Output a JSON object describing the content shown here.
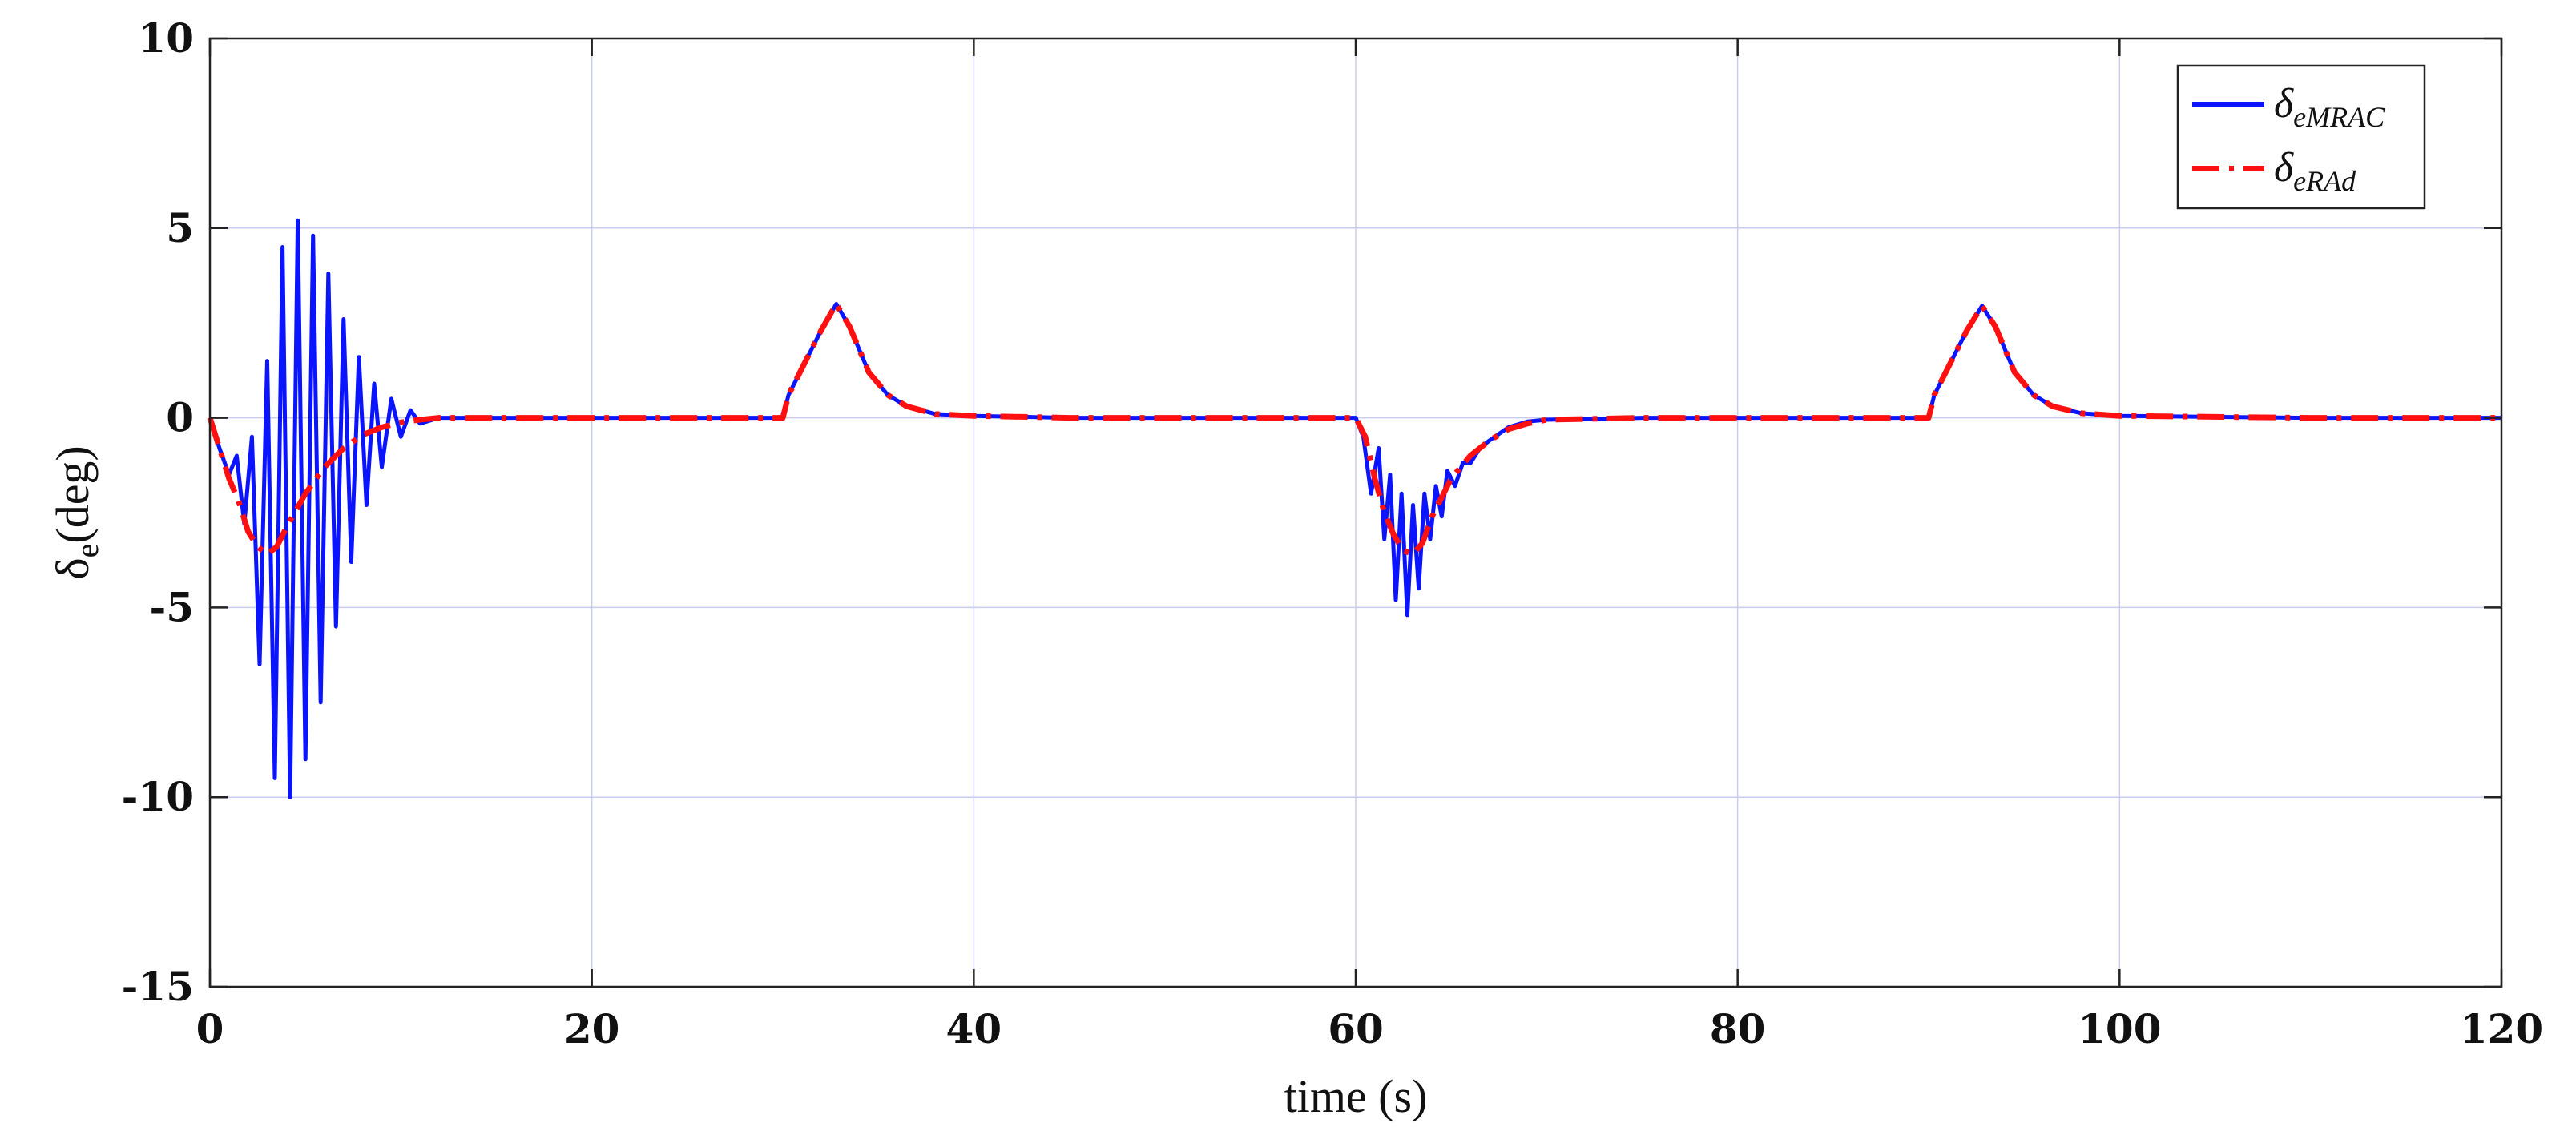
{
  "chart_data": {
    "type": "line",
    "xlabel": "time (s)",
    "ylabel": "δe(deg)",
    "ylabel_main": "δ",
    "ylabel_sub": "e",
    "ylabel_rest": "(deg)",
    "xlim": [
      0,
      120
    ],
    "ylim": [
      -15,
      10
    ],
    "xticks": [
      0,
      20,
      40,
      60,
      80,
      100,
      120
    ],
    "yticks": [
      -15,
      -10,
      -5,
      0,
      5,
      10
    ],
    "xtick_labels": [
      "0",
      "20",
      "40",
      "60",
      "80",
      "100",
      "120"
    ],
    "ytick_labels": [
      "-15",
      "-10",
      "-5",
      "0",
      "5",
      "10"
    ],
    "grid": true,
    "legend_position": "top-right",
    "series": [
      {
        "name": "δeMRAC",
        "name_main": "δ",
        "name_sub": "eMRAC",
        "color": "#0a14ff",
        "style": "solid",
        "x": [
          0,
          0.5,
          1.0,
          1.4,
          1.8,
          2.2,
          2.6,
          3.0,
          3.4,
          3.8,
          4.2,
          4.6,
          5.0,
          5.4,
          5.8,
          6.2,
          6.6,
          7.0,
          7.4,
          7.8,
          8.2,
          8.6,
          9.0,
          9.5,
          10.0,
          10.5,
          11.0,
          12.0,
          20.0,
          30.0,
          30.3,
          31.0,
          32.0,
          32.8,
          33.5,
          34.5,
          35.5,
          36.5,
          38.0,
          40.0,
          45.0,
          50.0,
          55.0,
          60.0,
          60.4,
          60.8,
          61.2,
          61.5,
          61.8,
          62.1,
          62.4,
          62.7,
          63.0,
          63.3,
          63.6,
          63.9,
          64.2,
          64.5,
          64.8,
          65.2,
          65.6,
          66.0,
          66.5,
          67.0,
          68.0,
          69.0,
          70.0,
          75.0,
          80.0,
          85.0,
          90.0,
          90.3,
          91.0,
          92.0,
          92.8,
          93.5,
          94.5,
          95.5,
          96.5,
          98.0,
          100.0,
          110.0,
          120.0
        ],
        "y": [
          0,
          -0.8,
          -1.5,
          -1.0,
          -2.8,
          -0.5,
          -6.5,
          1.5,
          -9.5,
          4.5,
          -10.0,
          5.2,
          -9.0,
          4.8,
          -7.5,
          3.8,
          -5.5,
          2.6,
          -3.8,
          1.6,
          -2.3,
          0.9,
          -1.3,
          0.5,
          -0.5,
          0.2,
          -0.15,
          0,
          0,
          0,
          0.6,
          1.3,
          2.3,
          3.0,
          2.4,
          1.2,
          0.6,
          0.3,
          0.1,
          0.05,
          0,
          0,
          0,
          0,
          -0.5,
          -2.0,
          -0.8,
          -3.2,
          -1.5,
          -4.8,
          -2.0,
          -5.2,
          -2.3,
          -4.5,
          -2.0,
          -3.2,
          -1.8,
          -2.6,
          -1.4,
          -1.8,
          -1.2,
          -1.2,
          -0.8,
          -0.6,
          -0.25,
          -0.1,
          -0.05,
          0,
          0,
          0,
          0,
          0.6,
          1.3,
          2.3,
          2.95,
          2.4,
          1.2,
          0.6,
          0.3,
          0.12,
          0.05,
          0,
          0
        ]
      },
      {
        "name": "δeRAd",
        "name_main": "δ",
        "name_sub": "eRAd",
        "color": "#ff1010",
        "style": "dashdot",
        "x": [
          0,
          0.5,
          1.0,
          1.5,
          2.0,
          2.5,
          3.0,
          3.5,
          4.0,
          5.0,
          6.0,
          7.0,
          8.0,
          9.0,
          10.0,
          11.0,
          12.0,
          20.0,
          30.0,
          30.3,
          31.0,
          32.0,
          32.8,
          33.5,
          34.5,
          35.5,
          36.5,
          38.0,
          40.0,
          45.0,
          50.0,
          55.0,
          60.0,
          60.5,
          61.0,
          61.5,
          62.0,
          62.5,
          63.0,
          63.5,
          64.0,
          65.0,
          66.0,
          67.0,
          68.0,
          69.0,
          70.0,
          75.0,
          80.0,
          85.0,
          90.0,
          90.3,
          91.0,
          92.0,
          92.8,
          93.5,
          94.5,
          95.5,
          96.5,
          98.0,
          100.0,
          110.0,
          120.0
        ],
        "y": [
          0,
          -0.8,
          -1.6,
          -2.2,
          -3.0,
          -3.4,
          -3.6,
          -3.4,
          -2.9,
          -2.0,
          -1.3,
          -0.8,
          -0.45,
          -0.25,
          -0.12,
          -0.05,
          0,
          0,
          0,
          0.6,
          1.3,
          2.3,
          3.0,
          2.4,
          1.2,
          0.6,
          0.3,
          0.1,
          0.05,
          0,
          0,
          0,
          0,
          -0.5,
          -1.6,
          -2.5,
          -3.1,
          -3.5,
          -3.6,
          -3.3,
          -2.6,
          -1.6,
          -1.0,
          -0.6,
          -0.3,
          -0.15,
          -0.05,
          0,
          0,
          0,
          0,
          0.6,
          1.3,
          2.3,
          2.95,
          2.4,
          1.2,
          0.6,
          0.3,
          0.12,
          0.05,
          0,
          0
        ]
      }
    ]
  }
}
